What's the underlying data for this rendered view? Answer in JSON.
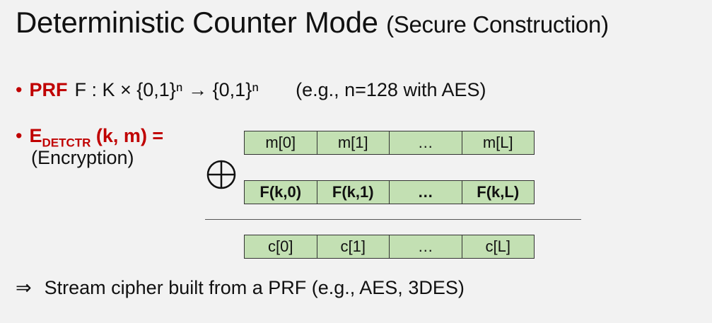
{
  "slide": {
    "title": "Deterministic Counter Mode",
    "subtitle": "(Secure Construction)"
  },
  "bullets": {
    "prf": {
      "label": "PRF",
      "signature": "F : K × {0,1}ⁿ → {0,1}ⁿ",
      "example": "(e.g., n=128 with AES)"
    },
    "enc": {
      "label_main": "E",
      "label_sub": "DETCTR",
      "label_args": " (k, m)  =",
      "caption": "(Encryption)"
    }
  },
  "diagram": {
    "message_row": [
      "m[0]",
      "m[1]",
      "…",
      "m[L]"
    ],
    "prf_row": [
      "F(k,0)",
      "F(k,1)",
      "…",
      "F(k,L)"
    ],
    "cipher_row": [
      "c[0]",
      "c[1]",
      "…",
      "c[L]"
    ],
    "operator_icon": "xor-circle-plus-icon",
    "cell_color": "#c3e0b3"
  },
  "conclusion": {
    "arrow": "⇒",
    "text": "Stream cipher built from a PRF   (e.g.,  AES, 3DES)"
  },
  "colors": {
    "accent": "#c00000",
    "background": "#f2f2f2"
  }
}
